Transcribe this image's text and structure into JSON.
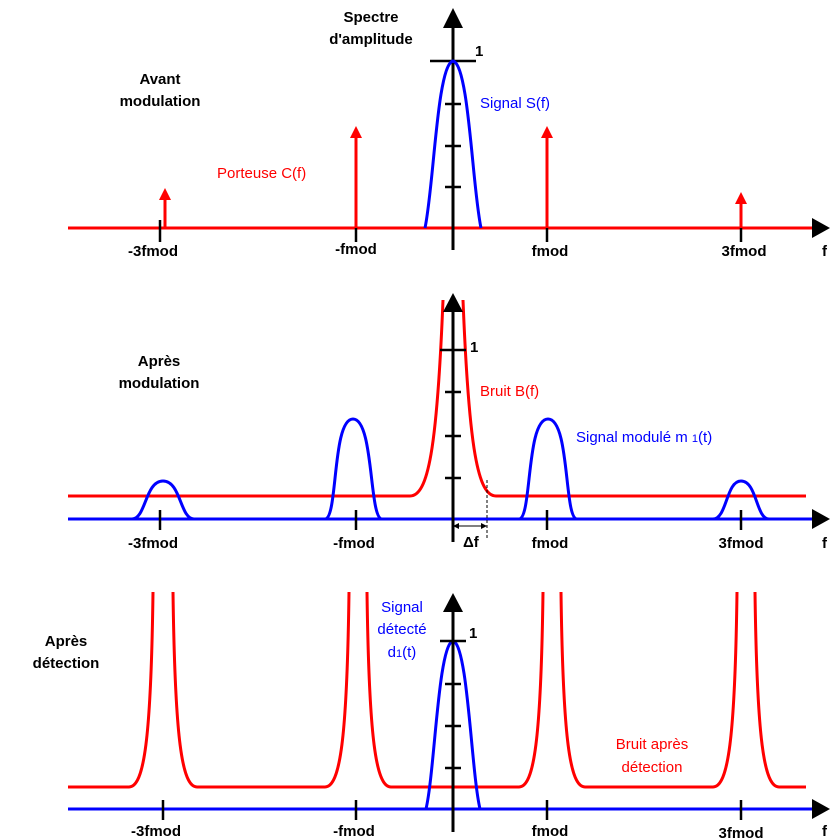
{
  "colors": {
    "carrier": "#ff0000",
    "signal": "#0000ff",
    "axis": "#000000"
  },
  "axis": {
    "y_title_line1": "Spectre",
    "y_title_line2": "d'amplitude",
    "unit_mark": "1",
    "f_label": "f",
    "ticks": [
      "-3fmod",
      "-fmod",
      "fmod",
      "3fmod"
    ]
  },
  "panel1": {
    "title_line1": "Avant",
    "title_line2": "modulation",
    "carrier_label": "Porteuse C(f)",
    "signal_label": "Signal S(f)"
  },
  "panel2": {
    "title_line1": "Après",
    "title_line2": "modulation",
    "noise_label": "Bruit B(f)",
    "modulated_label_main": "Signal modulé m ",
    "modulated_label_sub": "1",
    "modulated_label_end": "(t)",
    "delta_label": "Δf"
  },
  "panel3": {
    "title_line1": "Après",
    "title_line2": "détection",
    "signal_line1": "Signal",
    "signal_line2": "détecté",
    "signal_line3_main": "d",
    "signal_line3_sub": "1",
    "signal_line3_end": "(t)",
    "noise_line1": "Bruit après",
    "noise_line2": "détection"
  }
}
